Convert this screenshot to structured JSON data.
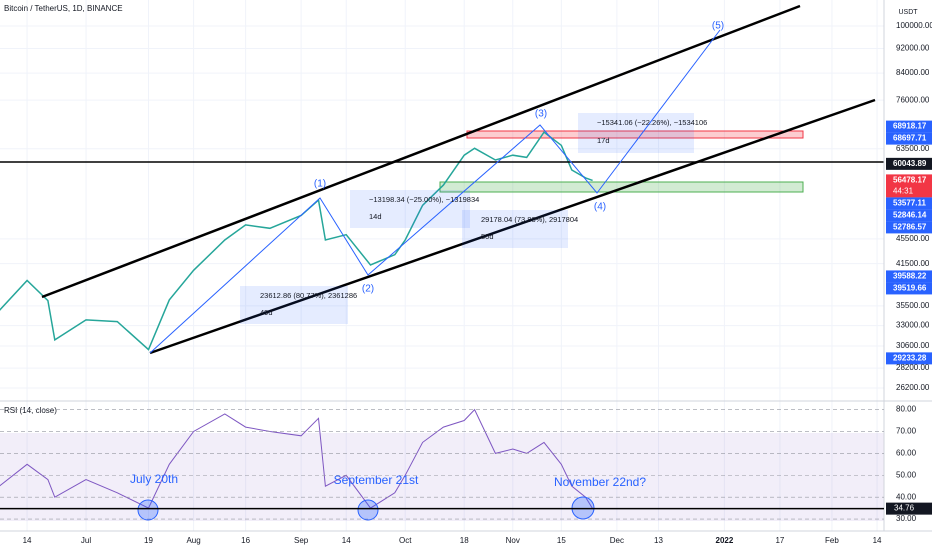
{
  "header": {
    "title": "Bitcoin / TetherUS, 1D, BINANCE",
    "currency": "USDT",
    "rsi_title": "RSI (14, close)"
  },
  "chart_data": [
    {
      "type": "line",
      "log": true,
      "color": "#2b2b2b",
      "x": [
        5,
        13,
        19,
        21,
        30,
        39,
        48,
        54,
        61,
        70,
        76,
        83,
        92,
        97,
        99,
        105,
        112,
        119,
        122,
        127,
        133,
        139,
        142,
        148,
        153,
        157,
        162,
        167,
        170,
        174,
        176
      ],
      "series": [
        {
          "color": "#26a69a",
          "values": [
            34900,
            39000,
            36200,
            31300,
            33700,
            33500,
            30200,
            36300,
            40500,
            45300,
            47900,
            47300,
            49600,
            52500,
            45300,
            46200,
            41300,
            42900,
            45300,
            51500,
            55500,
            62000,
            63600,
            60900,
            62000,
            61500,
            67500,
            64300,
            58700,
            57000,
            56478.17
          ]
        }
      ],
      "xlim": [
        5.2,
        260
      ],
      "xticks": [
        {
          "value": 13,
          "label": "14"
        },
        {
          "value": 30,
          "label": "Jul"
        },
        {
          "value": 48,
          "label": "19"
        },
        {
          "value": 61,
          "label": "Aug"
        },
        {
          "value": 76,
          "label": "16"
        },
        {
          "value": 92,
          "label": "Sep"
        },
        {
          "value": 105,
          "label": "14"
        },
        {
          "value": 122,
          "label": "Oct"
        },
        {
          "value": 139,
          "label": "18"
        },
        {
          "value": 153,
          "label": "Nov"
        },
        {
          "value": 167,
          "label": "15"
        },
        {
          "value": 183,
          "label": "Dec"
        },
        {
          "value": 195,
          "label": "13"
        },
        {
          "value": 214,
          "label": "2022"
        },
        {
          "value": 230,
          "label": "17"
        },
        {
          "value": 245,
          "label": "Feb"
        },
        {
          "value": 258,
          "label": "14"
        }
      ],
      "ylim": [
        25060,
        110100
      ],
      "yticks": [
        {
          "value": 100000,
          "label": "100000.00"
        },
        {
          "value": 92000,
          "label": "92000.00"
        },
        {
          "value": 84000,
          "label": "84000.00"
        },
        {
          "value": 76000,
          "label": "76000.00"
        },
        {
          "value": 63500,
          "label": "63500.00"
        },
        {
          "value": 45500,
          "label": "45500.00"
        },
        {
          "value": 41500,
          "label": "41500.00"
        },
        {
          "value": 35500,
          "label": "35500.00"
        },
        {
          "value": 33000,
          "label": "33000.00"
        },
        {
          "value": 30600,
          "label": "30600.00"
        },
        {
          "value": 28200,
          "label": "28200.00"
        },
        {
          "value": 26200,
          "label": "26200.00"
        }
      ],
      "price_badges": [
        {
          "value": 68918.17,
          "color": "#2962ff"
        },
        {
          "value": 68697.71,
          "color": "#2962ff"
        },
        {
          "value": 60043.89,
          "color": "#131722"
        },
        {
          "value": 56478.17,
          "color": "#f23645"
        },
        {
          "value": 53577.11,
          "color": "#2962ff"
        },
        {
          "value": 52846.14,
          "color": "#2962ff"
        },
        {
          "value": 52786.57,
          "color": "#2962ff"
        },
        {
          "value": 39588.22,
          "color": "#2962ff"
        },
        {
          "value": 39519.66,
          "color": "#2962ff"
        },
        {
          "value": 29233.28,
          "color": "#2962ff"
        }
      ],
      "countdown": "44:31",
      "waves": [
        "(1)",
        "(2)",
        "(3)",
        "(4)",
        "(5)"
      ],
      "measures": [
        {
          "change": "23612.86 (80.77%), 2361286",
          "bars": "49d"
        },
        {
          "change": "−13198.34 (−25.00%), −1319834",
          "bars": "14d"
        },
        {
          "change": "29178.04 (73.83%), 2917804",
          "bars": "50d"
        },
        {
          "change": "−15341.06 (−22.26%), −1534106",
          "bars": "17d"
        }
      ]
    },
    {
      "type": "line",
      "color": "#7e57c2",
      "x": [
        5,
        13,
        19,
        21,
        30,
        39,
        48,
        54,
        61,
        70,
        76,
        83,
        92,
        97,
        99,
        105,
        112,
        119,
        122,
        127,
        133,
        139,
        142,
        148,
        153,
        157,
        162,
        167,
        170,
        174,
        176
      ],
      "values": [
        45,
        55,
        48,
        40,
        48,
        42,
        35,
        55,
        70,
        78,
        72,
        70,
        68,
        76,
        45,
        50,
        35,
        42,
        50,
        65,
        72,
        75,
        80,
        60,
        62,
        60,
        65,
        55,
        45,
        40,
        34.76
      ],
      "ylim": [
        25,
        83
      ],
      "yticks": [
        {
          "value": 80,
          "label": "80.00"
        },
        {
          "value": 70,
          "label": "70.00"
        },
        {
          "value": 60,
          "label": "60.00"
        },
        {
          "value": 50,
          "label": "50.00"
        },
        {
          "value": 40,
          "label": "40.00"
        },
        {
          "value": 30,
          "label": "30.00"
        }
      ],
      "level": {
        "value": 34.76,
        "label": "34.76"
      },
      "annotations": [
        "July 20th",
        "September 21st",
        "November 22nd?"
      ]
    }
  ]
}
